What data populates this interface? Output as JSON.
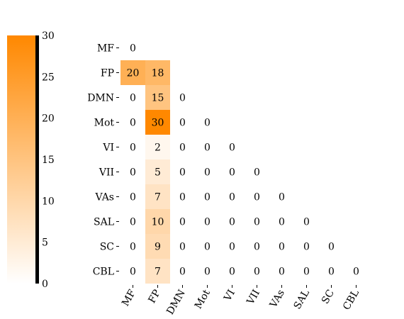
{
  "chart_data": {
    "type": "heatmap",
    "title": "",
    "xlabel": "",
    "ylabel": "",
    "rows": [
      "MF",
      "FP",
      "DMN",
      "Mot",
      "VI",
      "VII",
      "VAs",
      "SAL",
      "SC",
      "CBL"
    ],
    "columns": [
      "MF",
      "FP",
      "DMN",
      "Mot",
      "VI",
      "VII",
      "VAs",
      "SAL",
      "SC",
      "CBL"
    ],
    "mask": "upper-triangle",
    "values": [
      [
        0
      ],
      [
        20,
        18
      ],
      [
        0,
        15,
        0
      ],
      [
        0,
        30,
        0,
        0
      ],
      [
        0,
        2,
        0,
        0,
        0
      ],
      [
        0,
        5,
        0,
        0,
        0,
        0
      ],
      [
        0,
        7,
        0,
        0,
        0,
        0,
        0
      ],
      [
        0,
        10,
        0,
        0,
        0,
        0,
        0,
        0
      ],
      [
        0,
        9,
        0,
        0,
        0,
        0,
        0,
        0,
        0
      ],
      [
        0,
        7,
        0,
        0,
        0,
        0,
        0,
        0,
        0,
        0
      ]
    ],
    "colorbar": {
      "min": 0,
      "max": 30,
      "ticks": [
        0,
        5,
        10,
        15,
        20,
        25,
        30
      ],
      "location": "left"
    },
    "colors": {
      "low": "#ffffff",
      "high": "#ff8800",
      "text": "#000000",
      "axis_bar": "#000000"
    }
  }
}
